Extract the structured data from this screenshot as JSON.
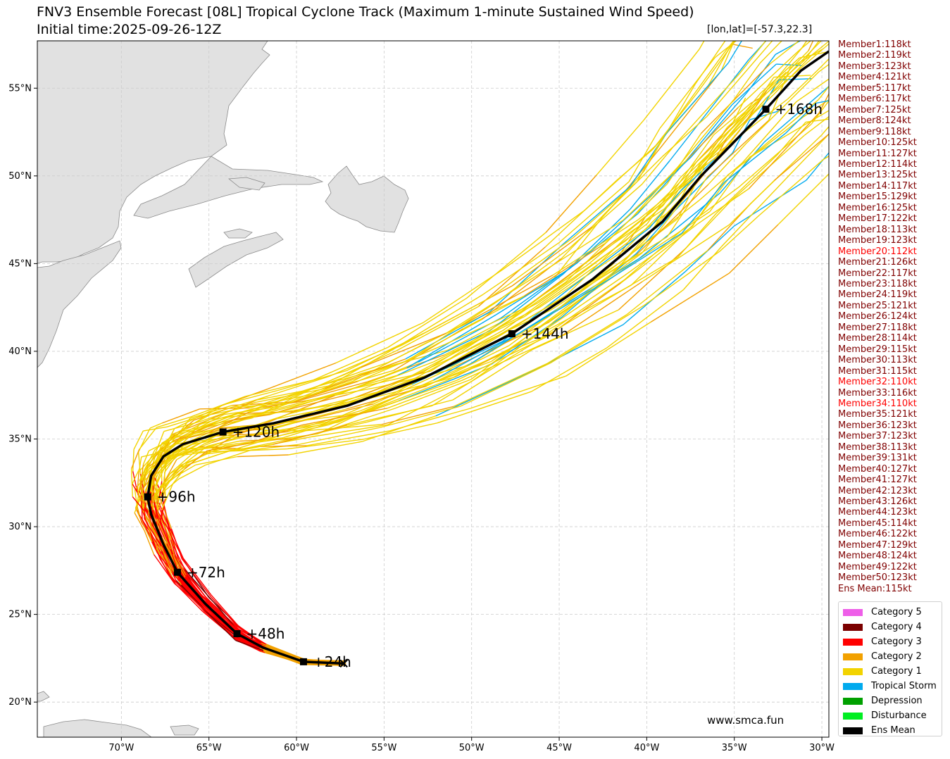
{
  "chart_data": {
    "type": "track-map",
    "title": "FNV3 Ensemble Forecast [08L] Tropical Cyclone Track (Maximum 1-minute Sustained Wind Speed)",
    "subtitle": "Initial time:2025-09-26-12Z",
    "position_label": "[lon,lat]=[-57.3,22.3]",
    "watermark": "www.smca.fun",
    "x_axis": {
      "range": [
        -74.8,
        -29.6
      ],
      "ticks": [
        -70,
        -65,
        -60,
        -55,
        -50,
        -45,
        -40,
        -35,
        -30
      ],
      "tick_labels": [
        "70°W",
        "65°W",
        "60°W",
        "55°W",
        "50°W",
        "45°W",
        "40°W",
        "35°W",
        "30°W"
      ]
    },
    "y_axis": {
      "range": [
        18.0,
        57.7
      ],
      "ticks": [
        20,
        25,
        30,
        35,
        40,
        45,
        50,
        55
      ],
      "tick_labels": [
        "20°N",
        "25°N",
        "30°N",
        "35°N",
        "40°N",
        "45°N",
        "50°N",
        "55°N"
      ]
    },
    "grid": true,
    "ens_mean_track": [
      [
        -57.3,
        22.2
      ],
      [
        -59.6,
        22.3
      ],
      [
        -61.9,
        23.1
      ],
      [
        -63.4,
        23.9
      ],
      [
        -65.2,
        25.6
      ],
      [
        -66.8,
        27.4
      ],
      [
        -67.6,
        29.0
      ],
      [
        -68.3,
        30.7
      ],
      [
        -68.5,
        31.7
      ],
      [
        -68.3,
        32.9
      ],
      [
        -67.6,
        34.0
      ],
      [
        -66.5,
        34.7
      ],
      [
        -64.2,
        35.4
      ],
      [
        -61.3,
        35.9
      ],
      [
        -57.1,
        36.9
      ],
      [
        -52.7,
        38.5
      ],
      [
        -47.7,
        41.0
      ],
      [
        -43.1,
        44.1
      ],
      [
        -39.1,
        47.4
      ],
      [
        -36.9,
        50.0
      ],
      [
        -33.2,
        53.8
      ],
      [
        -31.2,
        56.0
      ],
      [
        -29.6,
        57.1
      ]
    ],
    "time_markers": [
      {
        "label": "+24h",
        "lon": -59.6,
        "lat": 22.3
      },
      {
        "label": "+48h",
        "lon": -63.4,
        "lat": 23.9
      },
      {
        "label": "+72h",
        "lon": -66.8,
        "lat": 27.4
      },
      {
        "label": "+96h",
        "lon": -68.5,
        "lat": 31.7
      },
      {
        "label": "+120h",
        "lon": -64.2,
        "lat": 35.4
      },
      {
        "label": "+144h",
        "lon": -47.7,
        "lat": 41.0
      },
      {
        "label": "+168h",
        "lon": -33.2,
        "lat": 53.8
      }
    ],
    "members": [
      "Member1:118kt",
      "Member2:119kt",
      "Member3:123kt",
      "Member4:121kt",
      "Member5:117kt",
      "Member6:117kt",
      "Member7:125kt",
      "Member8:124kt",
      "Member9:118kt",
      "Member10:125kt",
      "Member11:127kt",
      "Member12:114kt",
      "Member13:125kt",
      "Member14:117kt",
      "Member15:129kt",
      "Member16:125kt",
      "Member17:122kt",
      "Member18:113kt",
      "Member19:123kt",
      "Member20:112kt",
      "Member21:126kt",
      "Member22:117kt",
      "Member23:118kt",
      "Member24:119kt",
      "Member25:121kt",
      "Member26:124kt",
      "Member27:118kt",
      "Member28:114kt",
      "Member29:115kt",
      "Member30:113kt",
      "Member31:115kt",
      "Member32:110kt",
      "Member33:116kt",
      "Member34:110kt",
      "Member35:121kt",
      "Member36:123kt",
      "Member37:123kt",
      "Member38:113kt",
      "Member39:131kt",
      "Member40:127kt",
      "Member41:127kt",
      "Member42:123kt",
      "Member43:126kt",
      "Member44:123kt",
      "Member45:114kt",
      "Member46:122kt",
      "Member47:129kt",
      "Member48:124kt",
      "Member49:122kt",
      "Member50:123kt",
      "Ens Mean:115kt"
    ],
    "highlighted_members": [
      20,
      32,
      34
    ],
    "legend": [
      {
        "label": "Category 5",
        "color": "#ee5ee8"
      },
      {
        "label": "Category 4",
        "color": "#7b0000"
      },
      {
        "label": "Category 3",
        "color": "#ff0000"
      },
      {
        "label": "Category 2",
        "color": "#f2a100"
      },
      {
        "label": "Category 1",
        "color": "#f2d300"
      },
      {
        "label": "Tropical Storm",
        "color": "#00aaee"
      },
      {
        "label": "Depression",
        "color": "#00a000"
      },
      {
        "label": "Disturbance",
        "color": "#00ee22"
      },
      {
        "label": "Ens Mean",
        "color": "#000000"
      }
    ]
  },
  "colors": {
    "member_text": "#800000",
    "member_text_highlight": "#ff0000",
    "land": "#e1e1e1",
    "land_edge": "#8a8a8a",
    "grid": "#cccccc"
  }
}
